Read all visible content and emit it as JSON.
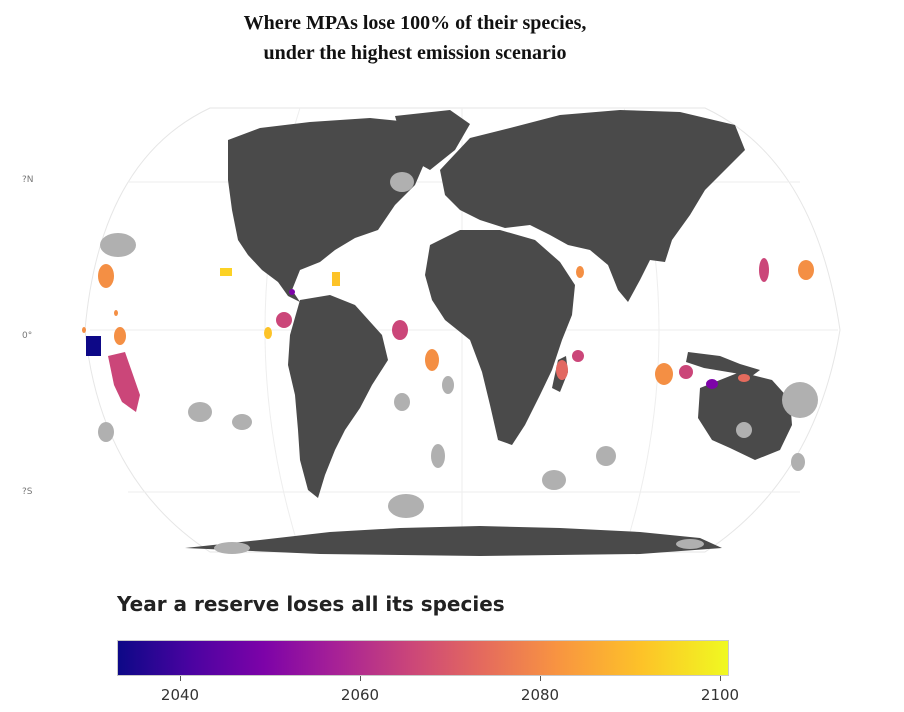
{
  "title": {
    "line1": "Where MPAs lose 100% of their species,",
    "line2": "under the highest emission scenario"
  },
  "map": {
    "projection": "Robinson",
    "lat_labels": [
      "?N",
      "0°",
      "?S"
    ],
    "colors": {
      "land": "#4a4a4a",
      "mpa_no_loss": "#b0b0b0",
      "ocean": "#ffffff"
    }
  },
  "legend": {
    "title": "Year a reserve loses all its species",
    "colormap": "plasma",
    "min": 2033,
    "max": 2101,
    "ticks": [
      {
        "label": "2040",
        "value": 2040
      },
      {
        "label": "2060",
        "value": 2060
      },
      {
        "label": "2080",
        "value": 2080
      },
      {
        "label": "2100",
        "value": 2100
      }
    ]
  }
}
